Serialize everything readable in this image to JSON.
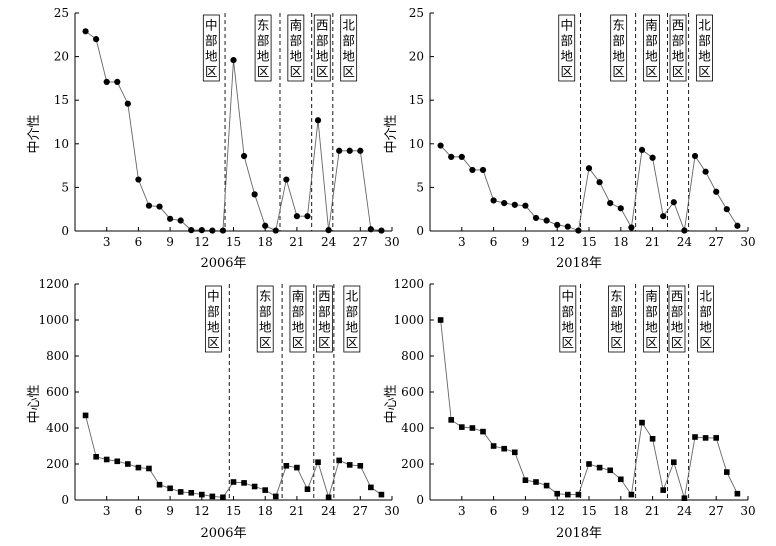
{
  "chart_data": [
    {
      "type": "line",
      "panel": "top-left",
      "xlabel": "2006年",
      "ylabel": "中介性",
      "xlim": [
        0,
        30
      ],
      "ylim": [
        0,
        25
      ],
      "xticks": [
        3,
        6,
        9,
        12,
        15,
        18,
        21,
        24,
        27,
        30
      ],
      "yticks": [
        0,
        5,
        10,
        15,
        20,
        25
      ],
      "marker": "circle",
      "x": [
        1,
        2,
        3,
        4,
        5,
        6,
        7,
        8,
        9,
        10,
        11,
        12,
        13,
        14,
        15,
        16,
        17,
        18,
        19,
        20,
        21,
        22,
        23,
        24,
        25,
        26,
        27,
        28,
        29
      ],
      "values": [
        22.9,
        22.0,
        17.1,
        17.1,
        14.6,
        5.9,
        2.9,
        2.8,
        1.4,
        1.2,
        0.1,
        0.1,
        0.05,
        0.05,
        19.6,
        8.6,
        4.2,
        0.6,
        0.05,
        5.9,
        1.7,
        1.7,
        12.7,
        0.1,
        9.2,
        9.2,
        9.2,
        0.2,
        0.05
      ],
      "dividers": [
        14.2,
        19.4,
        22.4,
        24.4
      ],
      "regions": [
        "中部地区",
        "东部地区",
        "南部地区",
        "西部地区",
        "北部地区"
      ],
      "region_centers": [
        12.9,
        17.8,
        20.9,
        23.4,
        25.9
      ]
    },
    {
      "type": "line",
      "panel": "top-right",
      "xlabel": "2018年",
      "ylabel": "中介性",
      "xlim": [
        0,
        30
      ],
      "ylim": [
        0,
        25
      ],
      "xticks": [
        3,
        6,
        9,
        12,
        15,
        18,
        21,
        24,
        27,
        30
      ],
      "yticks": [
        0,
        5,
        10,
        15,
        20,
        25
      ],
      "marker": "circle",
      "x": [
        1,
        2,
        3,
        4,
        5,
        6,
        7,
        8,
        9,
        10,
        11,
        12,
        13,
        14,
        15,
        16,
        17,
        18,
        19,
        20,
        21,
        22,
        23,
        24,
        25,
        26,
        27,
        28,
        29
      ],
      "values": [
        9.8,
        8.5,
        8.5,
        7.0,
        7.0,
        3.5,
        3.2,
        3.0,
        2.9,
        1.5,
        1.2,
        0.7,
        0.5,
        0.05,
        7.2,
        5.6,
        3.2,
        2.6,
        0.4,
        9.3,
        8.4,
        1.7,
        3.3,
        0.05,
        8.6,
        6.8,
        4.5,
        2.5,
        0.6
      ],
      "dividers": [
        14.2,
        19.4,
        22.4,
        24.4
      ],
      "regions": [
        "中部地区",
        "东部地区",
        "南部地区",
        "西部地区",
        "北部地区"
      ],
      "region_centers": [
        12.9,
        17.8,
        20.9,
        23.4,
        25.9
      ]
    },
    {
      "type": "line",
      "panel": "bottom-left",
      "xlabel": "2006年",
      "ylabel": "中心性",
      "xlim": [
        0,
        30
      ],
      "ylim": [
        0,
        1200
      ],
      "xticks": [
        3,
        6,
        9,
        12,
        15,
        18,
        21,
        24,
        27,
        30
      ],
      "yticks": [
        0,
        200,
        400,
        600,
        800,
        1000,
        1200
      ],
      "marker": "square",
      "x": [
        1,
        2,
        3,
        4,
        5,
        6,
        7,
        8,
        9,
        10,
        11,
        12,
        13,
        14,
        15,
        16,
        17,
        18,
        19,
        20,
        21,
        22,
        23,
        24,
        25,
        26,
        27,
        28,
        29
      ],
      "values": [
        470,
        240,
        225,
        215,
        200,
        180,
        175,
        85,
        65,
        45,
        40,
        30,
        20,
        15,
        100,
        95,
        75,
        55,
        20,
        190,
        180,
        60,
        210,
        15,
        220,
        195,
        190,
        70,
        30
      ],
      "dividers": [
        14.6,
        19.6,
        22.6,
        24.5
      ],
      "regions": [
        "中部地区",
        "东部地区",
        "南部地区",
        "西部地区",
        "北部地区"
      ],
      "region_centers": [
        13.1,
        18.0,
        21.1,
        23.6,
        26.2
      ]
    },
    {
      "type": "line",
      "panel": "bottom-right",
      "xlabel": "2018年",
      "ylabel": "中心性",
      "xlim": [
        0,
        30
      ],
      "ylim": [
        0,
        1200
      ],
      "xticks": [
        3,
        6,
        9,
        12,
        15,
        18,
        21,
        24,
        27,
        30
      ],
      "yticks": [
        0,
        200,
        400,
        600,
        800,
        1000,
        1200
      ],
      "marker": "square",
      "x": [
        1,
        2,
        3,
        4,
        5,
        6,
        7,
        8,
        9,
        10,
        11,
        12,
        13,
        14,
        15,
        16,
        17,
        18,
        19,
        20,
        21,
        22,
        23,
        24,
        25,
        26,
        27,
        28,
        29
      ],
      "values": [
        1000,
        445,
        405,
        400,
        380,
        300,
        285,
        265,
        110,
        100,
        80,
        35,
        30,
        30,
        200,
        180,
        165,
        115,
        30,
        430,
        340,
        55,
        210,
        10,
        350,
        345,
        345,
        155,
        35
      ],
      "dividers": [
        14.2,
        19.4,
        22.4,
        24.4
      ],
      "regions": [
        "中部地区",
        "东部地区",
        "南部地区",
        "西部地区",
        "北部地区"
      ],
      "region_centers": [
        13.0,
        17.6,
        20.9,
        23.3,
        26.0
      ]
    }
  ]
}
